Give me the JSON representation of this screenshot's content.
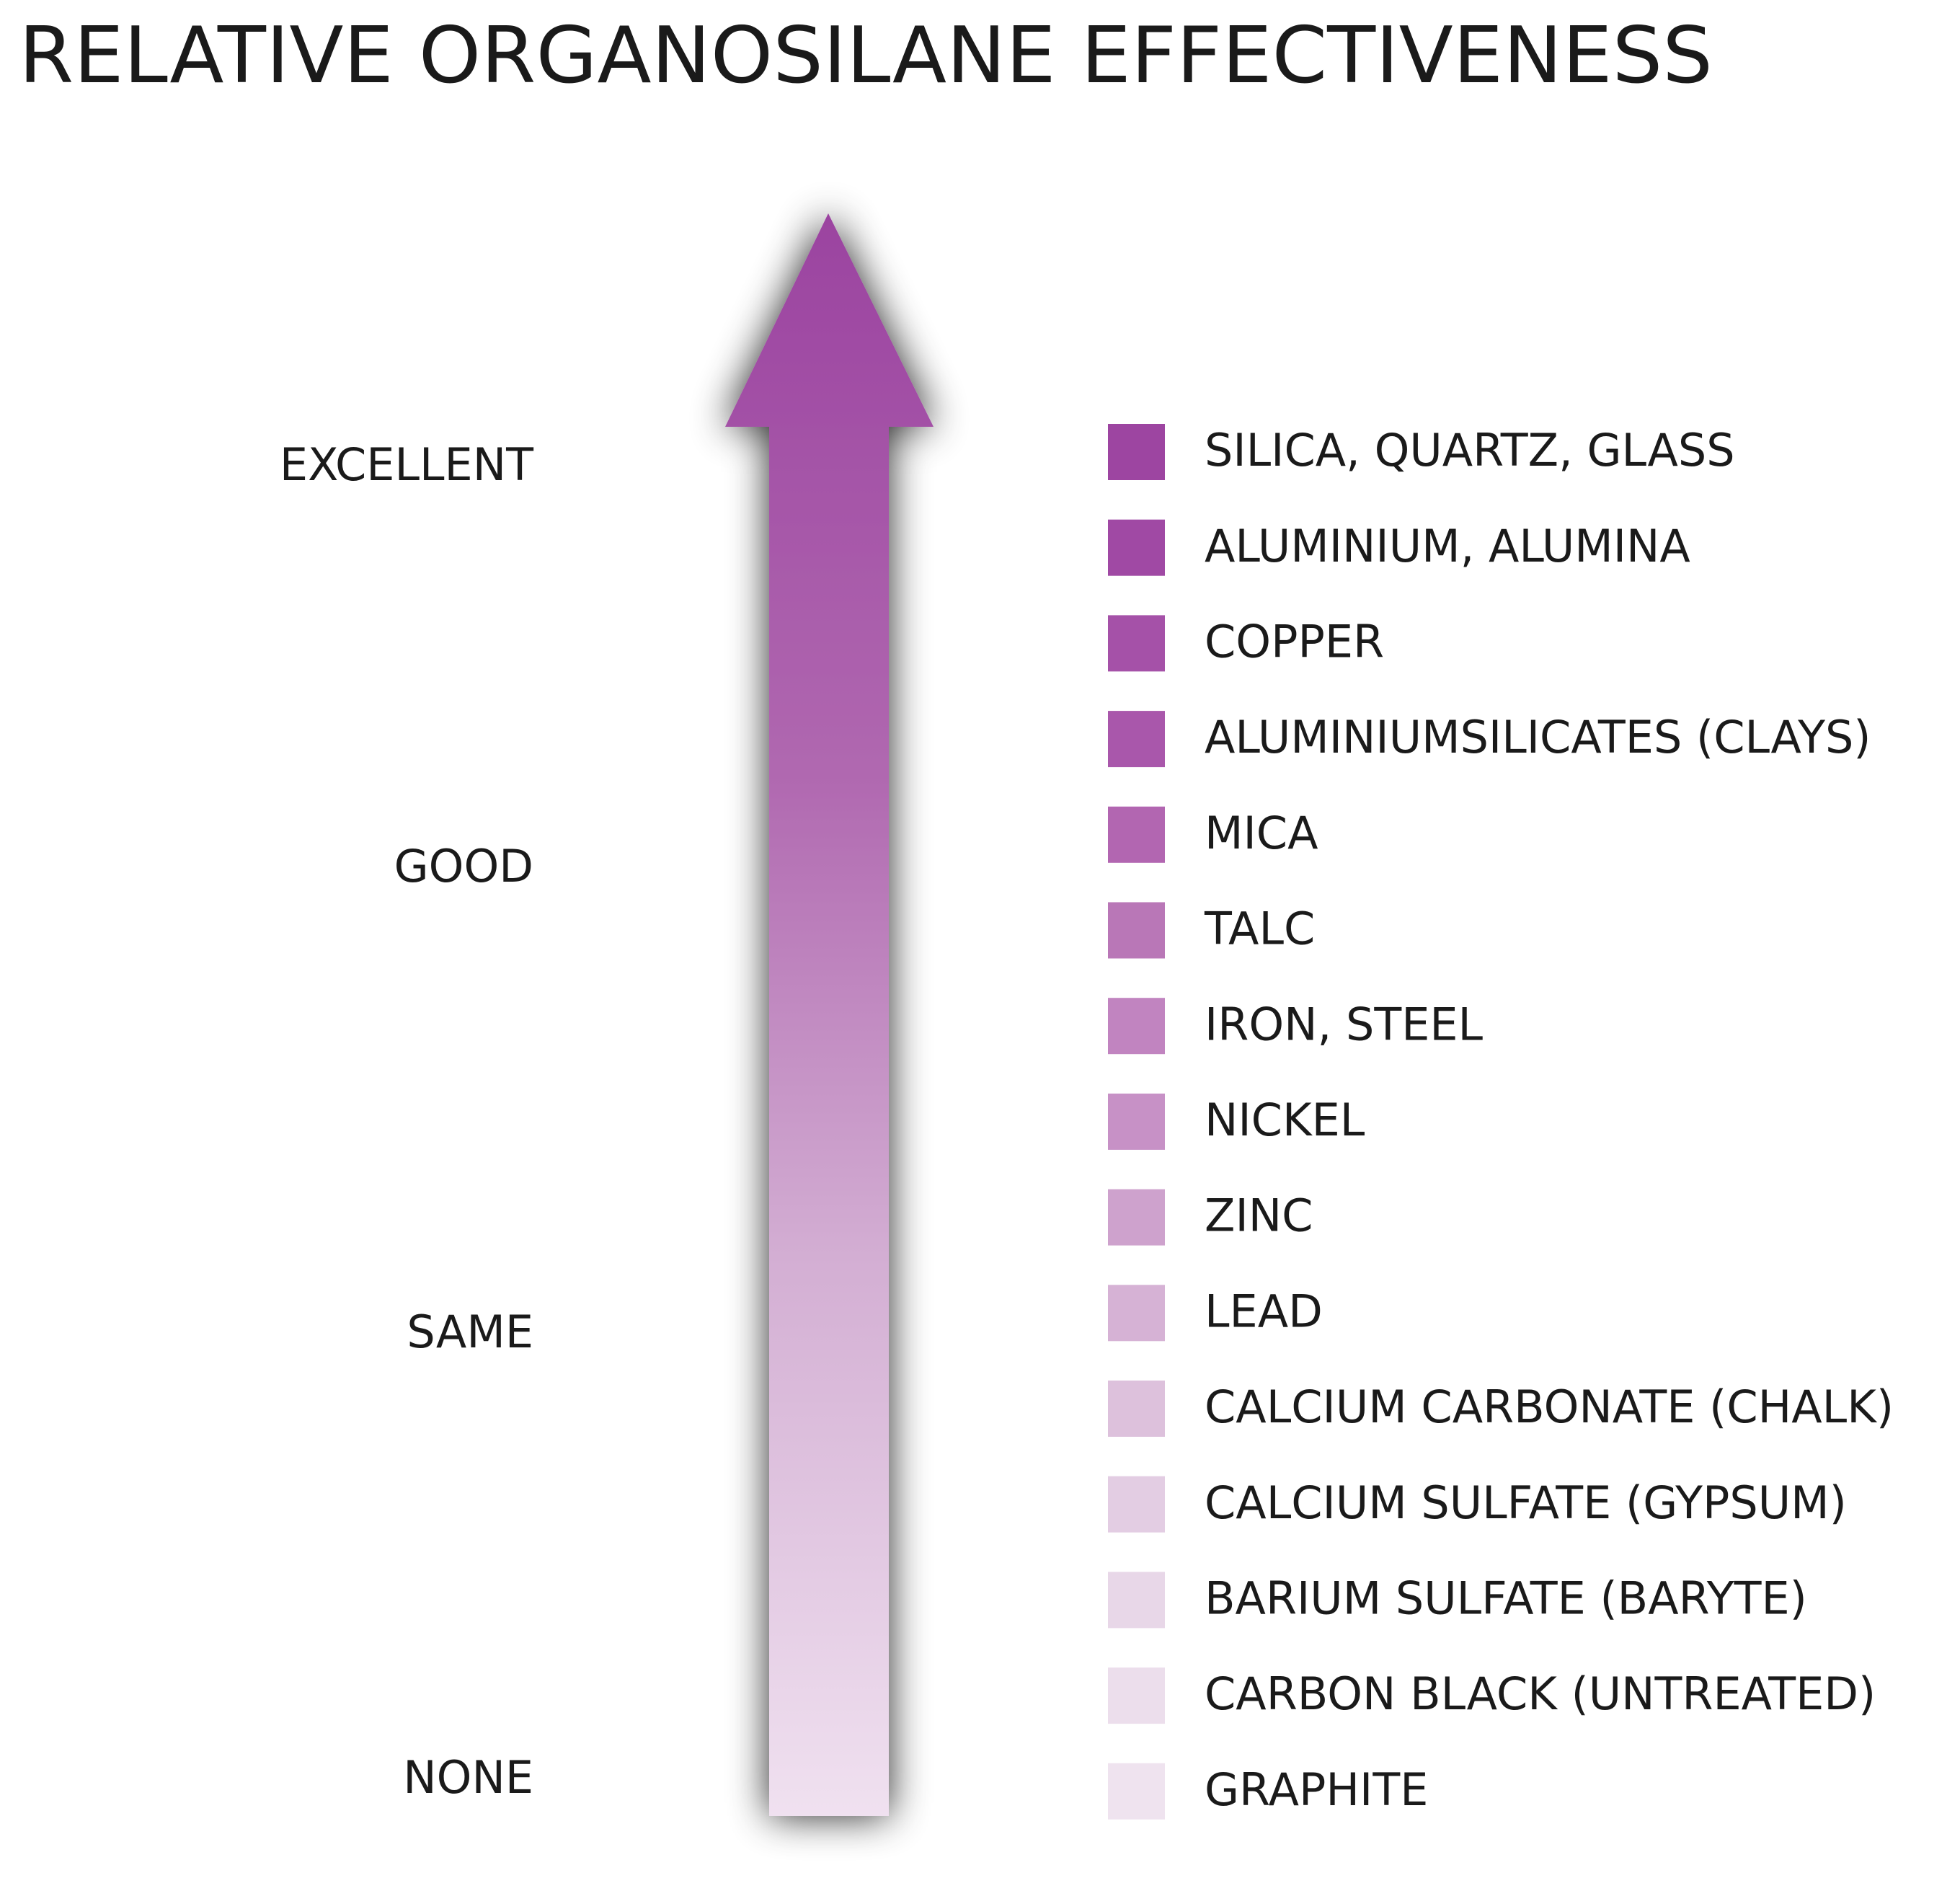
{
  "title": "RELATIVE ORGANOSILANE EFFECTIVENESS",
  "scale": [
    "EXCELLENT",
    "GOOD",
    "SAME",
    "NONE"
  ],
  "items": [
    {
      "label": "SILICA, QUARTZ, GLASS",
      "color": "#9d45a1"
    },
    {
      "label": "ALUMINIUM, ALUMINA",
      "color": "#a049a4"
    },
    {
      "label": "COPPER",
      "color": "#a551a8"
    },
    {
      "label": "ALUMINIUMSILICATES  (CLAYS)",
      "color": "#a957ab"
    },
    {
      "label": "MICA",
      "color": "#b266b1"
    },
    {
      "label": "TALC",
      "color": "#b977b7"
    },
    {
      "label": "IRON, STEEL",
      "color": "#c184c0"
    },
    {
      "label": "NICKEL",
      "color": "#c791c6"
    },
    {
      "label": "ZINC",
      "color": "#cea2cd"
    },
    {
      "label": "LEAD",
      "color": "#d6b2d5"
    },
    {
      "label": "CALCIUM CARBONATE  (CHALK)",
      "color": "#ddc1dc"
    },
    {
      "label": "CALCIUM SULFATE  (GYPSUM)",
      "color": "#e3cde3"
    },
    {
      "label": "BARIUM SULFATE  (BARYTE)",
      "color": "#e8d7e8"
    },
    {
      "label": "CARBON BLACK  (UNTREATED)",
      "color": "#ecdeec"
    },
    {
      "label": "GRAPHITE",
      "color": "#efe3ef"
    }
  ]
}
